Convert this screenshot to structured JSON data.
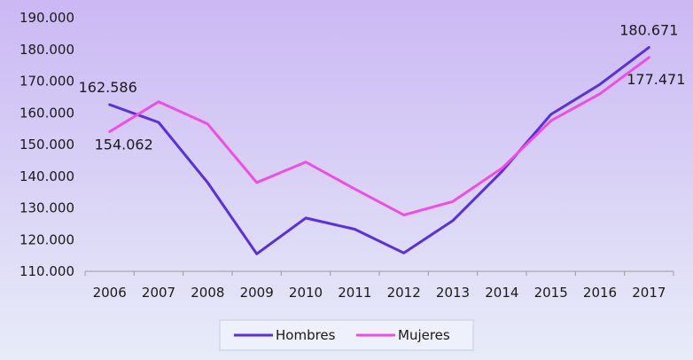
{
  "chart_data": {
    "type": "line",
    "categories": [
      "2006",
      "2007",
      "2008",
      "2009",
      "2010",
      "2011",
      "2012",
      "2013",
      "2014",
      "2015",
      "2016",
      "2017"
    ],
    "series": [
      {
        "name": "Hombres",
        "color": "#5a2fe0",
        "values": [
          162586,
          157000,
          138000,
          115500,
          126800,
          123300,
          115800,
          126000,
          141500,
          159500,
          169000,
          180671
        ]
      },
      {
        "name": "Mujeres",
        "color": "#f04ce6",
        "values": [
          154062,
          163500,
          156500,
          138000,
          144500,
          136000,
          127800,
          132000,
          142500,
          157500,
          166000,
          177471
        ]
      }
    ],
    "data_labels": [
      {
        "series": 0,
        "index": 0,
        "text": "162.586"
      },
      {
        "series": 1,
        "index": 0,
        "text": "154.062"
      },
      {
        "series": 0,
        "index": 11,
        "text": "180.671"
      },
      {
        "series": 1,
        "index": 11,
        "text": "177.471"
      }
    ],
    "ylim": [
      110000,
      190000
    ],
    "yticks": [
      "110.000",
      "120.000",
      "130.000",
      "140.000",
      "150.000",
      "160.000",
      "170.000",
      "180.000",
      "190.000"
    ],
    "grid": false,
    "legend_position": "bottom",
    "title": "",
    "xlabel": "",
    "ylabel": ""
  }
}
